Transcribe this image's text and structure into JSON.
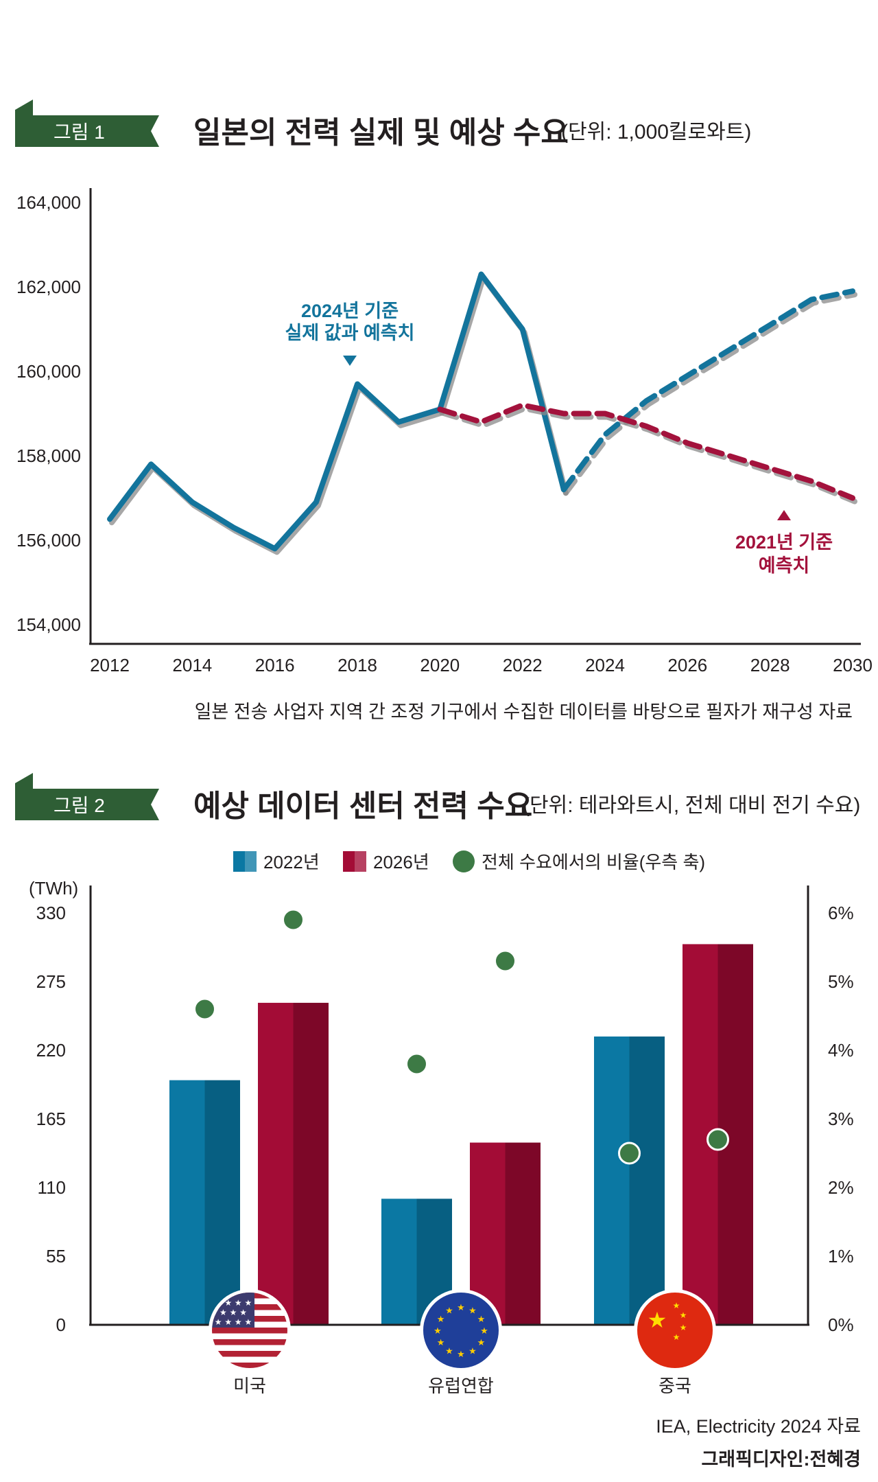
{
  "colors": {
    "badge": "#2e5e35",
    "actual": "#13749c",
    "forecast2021": "#a3123c",
    "bar2022": "#0b78a3",
    "bar2026": "#a30c36",
    "dot": "#3d7a45"
  },
  "figure1": {
    "badge": "그림 1",
    "title": "일본의 전력 실제 및 예상 수요",
    "unit": "(단위: 1,000킬로와트)",
    "annotation_2024": [
      "2024년 기준",
      "실제 값과 예측치"
    ],
    "annotation_2021": [
      "2021년 기준",
      "예측치"
    ],
    "source": "일본 전송 사업자 지역 간 조정 기구에서 수집한 데이터를 바탕으로 필자가 재구성 자료"
  },
  "figure2": {
    "badge": "그림 2",
    "title": "예상 데이터 센터 전력 수요",
    "unit": "(단위: 테라와트시, 전체 대비 전기 수요)",
    "left_axis_unit": "(TWh)",
    "source": "IEA, Electricity 2024 자료",
    "credit": "그래픽디자인:전혜경"
  },
  "chart_data": [
    {
      "type": "line",
      "title": "일본의 전력 실제 및 예상 수요",
      "x_ticks": [
        "2012",
        "2014",
        "2016",
        "2018",
        "2020",
        "2022",
        "2024",
        "2026",
        "2028",
        "2030"
      ],
      "y_ticks": [
        "154,000",
        "156,000",
        "158,000",
        "160,000",
        "162,000",
        "164,000"
      ],
      "xlim": [
        2012,
        2030
      ],
      "ylim": [
        154000,
        164000
      ],
      "grid": false,
      "series": [
        {
          "name": "2024년 기준 실제 값과 예측치",
          "style": "solid",
          "x": [
            2012,
            2013,
            2014,
            2015,
            2016,
            2017,
            2018,
            2019,
            2020,
            2021,
            2022,
            2023
          ],
          "y": [
            156500,
            157800,
            156900,
            156300,
            155800,
            156900,
            159700,
            158800,
            159100,
            162300,
            161000,
            157200
          ]
        },
        {
          "name": "2024년 기준 실제 값과 예측치",
          "style": "dashed",
          "x": [
            2023,
            2024,
            2025,
            2026,
            2027,
            2028,
            2029,
            2030
          ],
          "y": [
            157200,
            158500,
            159300,
            159900,
            160500,
            161100,
            161700,
            161900
          ]
        },
        {
          "name": "2021년 기준 예측치",
          "style": "dashed",
          "x": [
            2020,
            2021,
            2022,
            2023,
            2024,
            2025,
            2026,
            2027,
            2028,
            2029,
            2030
          ],
          "y": [
            159100,
            158800,
            159200,
            159000,
            159000,
            158700,
            158300,
            158000,
            157700,
            157400,
            157000
          ]
        }
      ]
    },
    {
      "type": "bar",
      "title": "예상 데이터 센터 전력 수요",
      "categories": [
        "미국",
        "유럽연합",
        "중국"
      ],
      "y_ticks_left": [
        "0",
        "55",
        "110",
        "165",
        "220",
        "275",
        "330"
      ],
      "y_ticks_right": [
        "0%",
        "1%",
        "2%",
        "3%",
        "4%",
        "5%",
        "6%"
      ],
      "ylim_left": [
        0,
        330
      ],
      "ylim_right": [
        0,
        6
      ],
      "legend_position": "top",
      "grid": false,
      "series": [
        {
          "name": "2022년",
          "axis": "left",
          "values": [
            196,
            101,
            231
          ]
        },
        {
          "name": "2026년",
          "axis": "left",
          "values": [
            258,
            146,
            305
          ]
        },
        {
          "name": "전체 수요에서의 비율(우측 축)",
          "axis": "right",
          "type": "scatter",
          "values_2022": [
            4.6,
            3.8,
            2.5
          ],
          "values_2026": [
            5.9,
            5.3,
            2.7
          ]
        }
      ]
    }
  ]
}
